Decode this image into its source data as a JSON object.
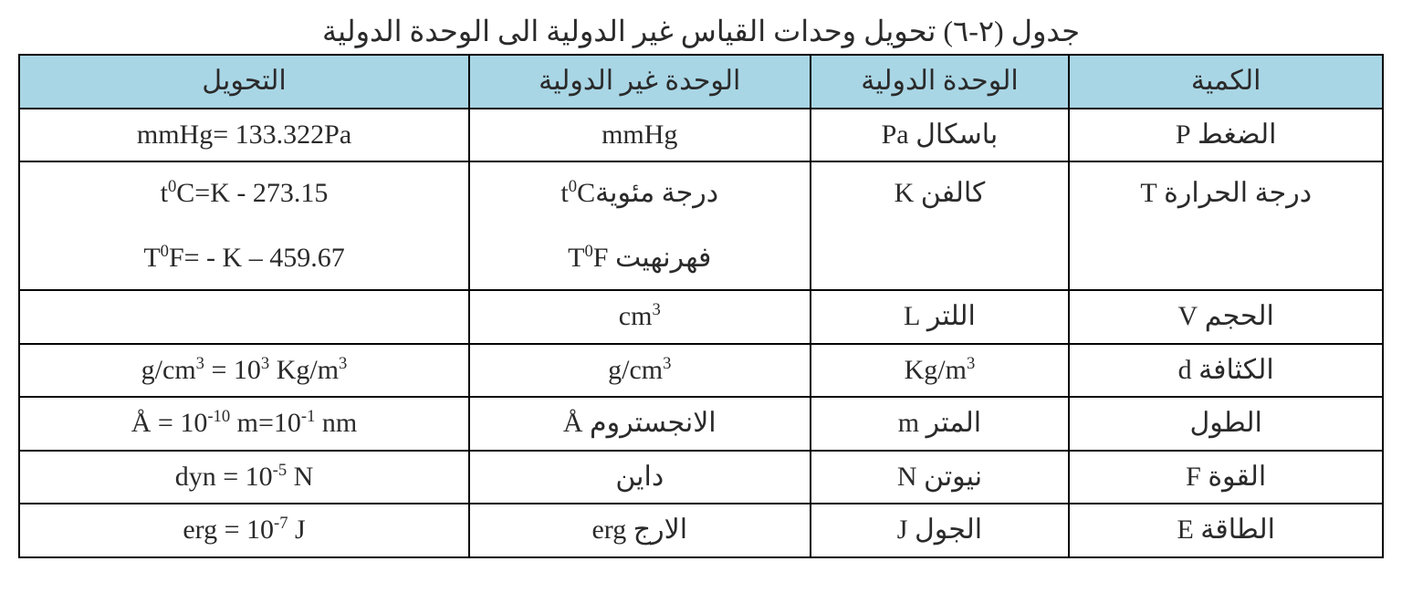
{
  "title": "جدول (٢-٦) تحويل وحدات القياس غير الدولية الى الوحدة الدولية",
  "headers": {
    "conversion": "التحويل",
    "non_si": "الوحدة غير الدولية",
    "si": "الوحدة الدولية",
    "quantity": "الكمية"
  },
  "rows": {
    "pressure": {
      "conversion": "mmHg= 133.322Pa",
      "non_si": "mmHg",
      "si": "باسكال Pa",
      "quantity": "الضغط P"
    },
    "temperature": {
      "conversion_c_html": "t<sup>0</sup>C=K - 273.15",
      "conversion_f_html": "T<sup>0</sup>F= - K – 459.67",
      "non_si_c_html": "درجة مئويةt<sup>0</sup>C",
      "non_si_f_html": "فهرنهيت T<sup>0</sup>F",
      "si": "كالفن K",
      "quantity": "درجة الحرارة T"
    },
    "volume": {
      "conversion": "",
      "non_si_html": "cm<sup>3</sup>",
      "si": "اللتر L",
      "quantity": "الحجم V"
    },
    "density": {
      "conversion_html": "g/cm<sup>3</sup> = 10<sup>3</sup> Kg/m<sup>3</sup>",
      "non_si_html": "g/cm<sup>3</sup>",
      "si_html": "Kg/m<sup>3</sup>",
      "quantity": "الكثافة d"
    },
    "length": {
      "conversion_html": "Å = 10<sup>-10</sup> m=10<sup>-1</sup> nm",
      "non_si": "الانجستروم Å",
      "si": "المتر m",
      "quantity": "الطول"
    },
    "force": {
      "conversion_html": "dyn = 10<sup>-5</sup> N",
      "non_si": "داين",
      "si": "نيوتن N",
      "quantity": "القوة F"
    },
    "energy": {
      "conversion_html": "erg = 10<sup>-7</sup> J",
      "non_si": "الارج erg",
      "si": "الجول J",
      "quantity": "الطاقة E"
    }
  },
  "style": {
    "header_bg": "#a9d6e5",
    "border_color": "#020202",
    "text_color": "#2a2a2a",
    "background_color": "#ffffff",
    "font_size_pt": 22,
    "title_font_size_pt": 24,
    "column_widths_pct": [
      33,
      25,
      19,
      23
    ]
  }
}
